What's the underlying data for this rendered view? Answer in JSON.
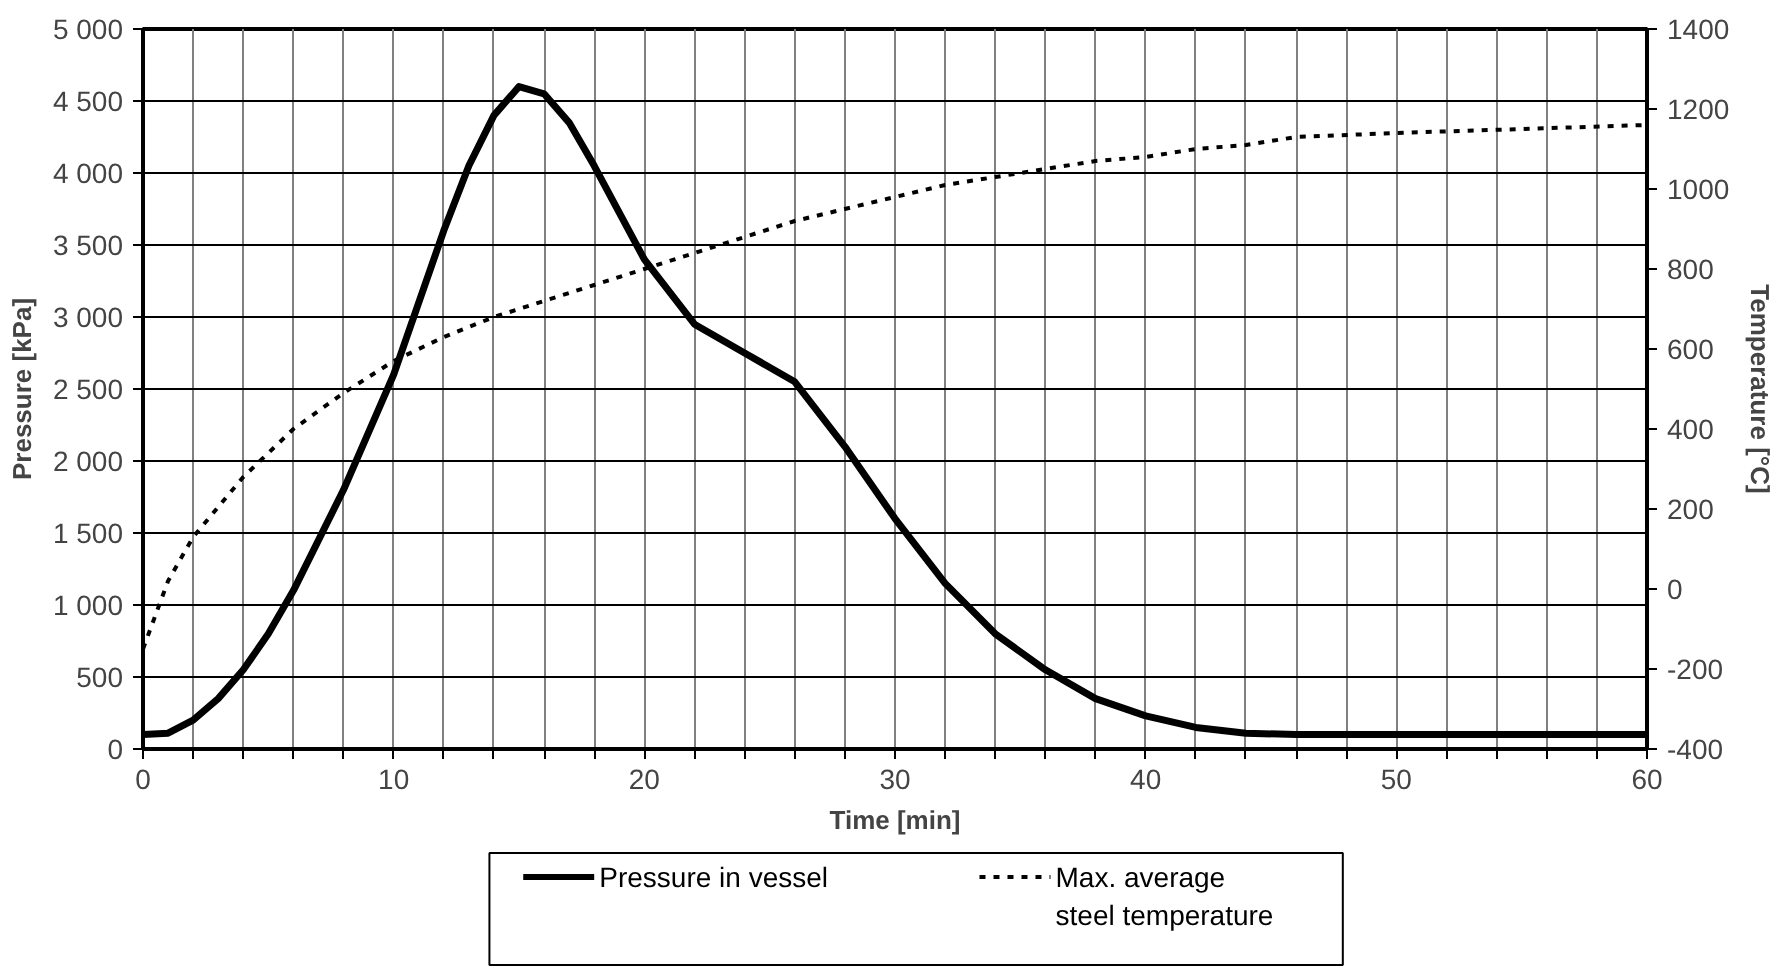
{
  "chart_data": {
    "type": "line",
    "xlabel": "Time [min]",
    "ylabel": "Pressure [kPa]",
    "y2label": "Temperature [°C]",
    "xlim": [
      0,
      60
    ],
    "ylim": [
      0,
      5000
    ],
    "y2lim": [
      -400,
      1400
    ],
    "xticks": [
      0,
      {
        "value": 2,
        "label": null
      },
      {
        "value": 4,
        "label": null
      },
      {
        "value": 6,
        "label": null
      },
      {
        "value": 8,
        "label": null
      },
      10,
      {
        "value": 12,
        "label": null
      },
      {
        "value": 14,
        "label": null
      },
      {
        "value": 16,
        "label": null
      },
      {
        "value": 18,
        "label": null
      },
      20,
      {
        "value": 22,
        "label": null
      },
      {
        "value": 24,
        "label": null
      },
      {
        "value": 26,
        "label": null
      },
      {
        "value": 28,
        "label": null
      },
      30,
      {
        "value": 32,
        "label": null
      },
      {
        "value": 34,
        "label": null
      },
      {
        "value": 36,
        "label": null
      },
      {
        "value": 38,
        "label": null
      },
      40,
      {
        "value": 42,
        "label": null
      },
      {
        "value": 44,
        "label": null
      },
      {
        "value": 46,
        "label": null
      },
      {
        "value": 48,
        "label": null
      },
      50,
      {
        "value": 52,
        "label": null
      },
      {
        "value": 54,
        "label": null
      },
      {
        "value": 56,
        "label": null
      },
      {
        "value": 58,
        "label": null
      },
      60
    ],
    "yticks": [
      0,
      500,
      {
        "value": 1000,
        "label": "1 000"
      },
      {
        "value": 1500,
        "label": "1 500"
      },
      {
        "value": 2000,
        "label": "2 000"
      },
      {
        "value": 2500,
        "label": "2 500"
      },
      {
        "value": 3000,
        "label": "3 000"
      },
      {
        "value": 3500,
        "label": "3 500"
      },
      {
        "value": 4000,
        "label": "4 000"
      },
      {
        "value": 4500,
        "label": "4 500"
      },
      {
        "value": 5000,
        "label": "5 000"
      }
    ],
    "y2ticks": [
      -400,
      -200,
      0,
      200,
      400,
      600,
      800,
      1000,
      1200,
      1400
    ],
    "grid": true,
    "legend": "bottom",
    "marker": "none",
    "series": [
      {
        "name": "Pressure in vessel",
        "color": "#000000",
        "line_style": "solid",
        "x": [
          0,
          1,
          2,
          3,
          4,
          5,
          6,
          8,
          10,
          12,
          13,
          14,
          15,
          16,
          17,
          18,
          20,
          22,
          24,
          26,
          28,
          30,
          32,
          34,
          36,
          38,
          40,
          42,
          44,
          46,
          60
        ],
        "values": [
          100,
          110,
          200,
          350,
          550,
          800,
          1100,
          1800,
          2600,
          3600,
          4050,
          4400,
          4600,
          4550,
          4350,
          4050,
          3400,
          2950,
          2750,
          2550,
          2100,
          1600,
          1150,
          800,
          550,
          350,
          230,
          150,
          110,
          100,
          100
        ]
      },
      {
        "name": "Max. average\nsteel temperature",
        "color": "#000000",
        "line_style": "dashed",
        "axis": "y2",
        "x": [
          0,
          1,
          2,
          4,
          6,
          8,
          10,
          12,
          14,
          16,
          18,
          20,
          22,
          24,
          26,
          28,
          30,
          32,
          34,
          36,
          38,
          40,
          42,
          44,
          46,
          50,
          55,
          60
        ],
        "values": [
          -150,
          20,
          130,
          280,
          400,
          490,
          570,
          630,
          680,
          720,
          760,
          800,
          840,
          880,
          920,
          950,
          980,
          1010,
          1030,
          1050,
          1070,
          1080,
          1100,
          1110,
          1130,
          1140,
          1150,
          1160
        ]
      }
    ]
  }
}
